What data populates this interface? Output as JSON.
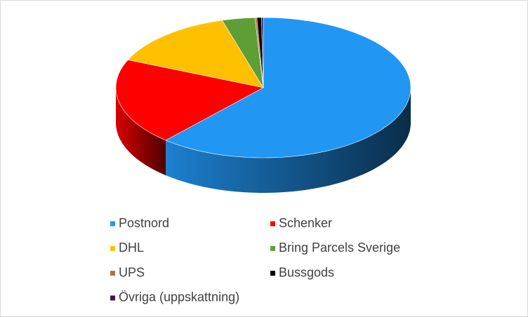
{
  "chart_data": {
    "type": "pie",
    "categories": [
      "Postnord",
      "Schenker",
      "DHL",
      "Bring Parcels Sverige",
      "UPS",
      "Bussgods",
      "Övriga (uppskattning)"
    ],
    "values": [
      61.5,
      20,
      14,
      3.6,
      0.2,
      0.5,
      0.2
    ],
    "colors": [
      "#2196f3",
      "#ff0000",
      "#ffc000",
      "#5f9e35",
      "#b3703f",
      "#000000",
      "#3a1850"
    ]
  }
}
